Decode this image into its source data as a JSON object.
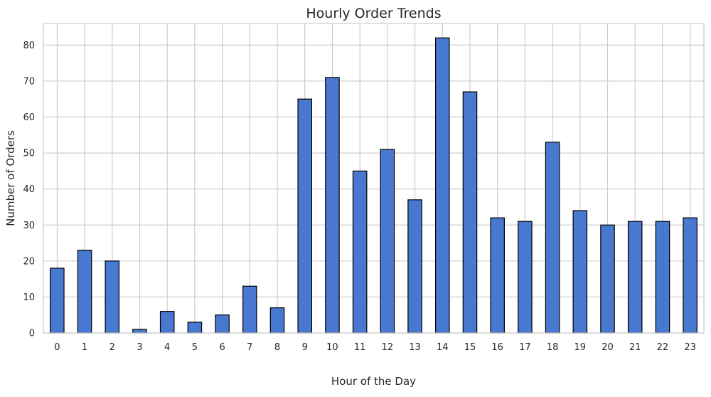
{
  "chart_data": {
    "type": "bar",
    "title": "Hourly Order Trends",
    "xlabel": "Hour of the Day",
    "ylabel": "Number of Orders",
    "categories": [
      "0",
      "1",
      "2",
      "3",
      "4",
      "5",
      "6",
      "7",
      "8",
      "9",
      "10",
      "11",
      "12",
      "13",
      "14",
      "15",
      "16",
      "17",
      "18",
      "19",
      "20",
      "21",
      "22",
      "23"
    ],
    "values": [
      18,
      23,
      20,
      1,
      6,
      3,
      5,
      13,
      7,
      65,
      71,
      45,
      51,
      37,
      82,
      67,
      32,
      31,
      53,
      34,
      30,
      31,
      31,
      32
    ],
    "ylim": [
      0,
      86
    ],
    "yticks": [
      0,
      10,
      20,
      30,
      40,
      50,
      60,
      70,
      80
    ],
    "grid": true,
    "bar_color": "#4878d0",
    "edge_color": "#000000"
  }
}
